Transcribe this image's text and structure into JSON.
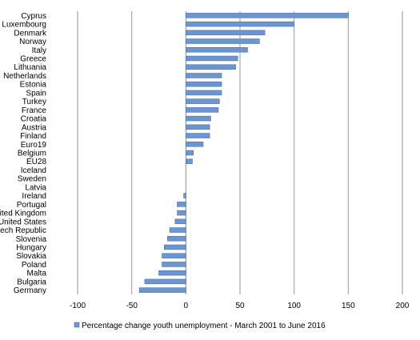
{
  "chart_data": {
    "type": "bar",
    "orientation": "horizontal",
    "categories": [
      "Cyprus",
      "Luxembourg",
      "Denmark",
      "Norway",
      "Italy",
      "Greece",
      "Lithuania",
      "Netherlands",
      "Estonia",
      "Spain",
      "Turkey",
      "France",
      "Croatia",
      "Austria",
      "Finland",
      "Euro19",
      "Belgium",
      "EU28",
      "Iceland",
      "Sweden",
      "Latvia",
      "Ireland",
      "Portugal",
      "United Kingdom",
      "United States",
      "Czech Republic",
      "Slovenia",
      "Hungary",
      "Slovakia",
      "Poland",
      "Malta",
      "Bulgaria",
      "Germany"
    ],
    "series": [
      {
        "name": "Percentage change youth unemployment - March 2001 to June 2016",
        "values": [
          150,
          100,
          73,
          68,
          57,
          48,
          46,
          33,
          33,
          33,
          31,
          30,
          23,
          22,
          22,
          16,
          7,
          6,
          0,
          0,
          0,
          -2,
          -8,
          -8,
          -10,
          -15,
          -17,
          -20,
          -22,
          -22,
          -25,
          -38,
          -43
        ]
      }
    ],
    "xlim": [
      -100,
      200
    ],
    "xticks": [
      -100,
      -50,
      0,
      50,
      100,
      150,
      200
    ],
    "xtick_labels": [
      "-100",
      "-50",
      "0",
      "50",
      "100",
      "150",
      "200"
    ],
    "grid": "vertical",
    "legend": "bottom",
    "colors": {
      "bar_fill": "#6d95cf",
      "bar_edge": "#4a72ad",
      "grid": "#999999",
      "axis": "#888888"
    }
  }
}
